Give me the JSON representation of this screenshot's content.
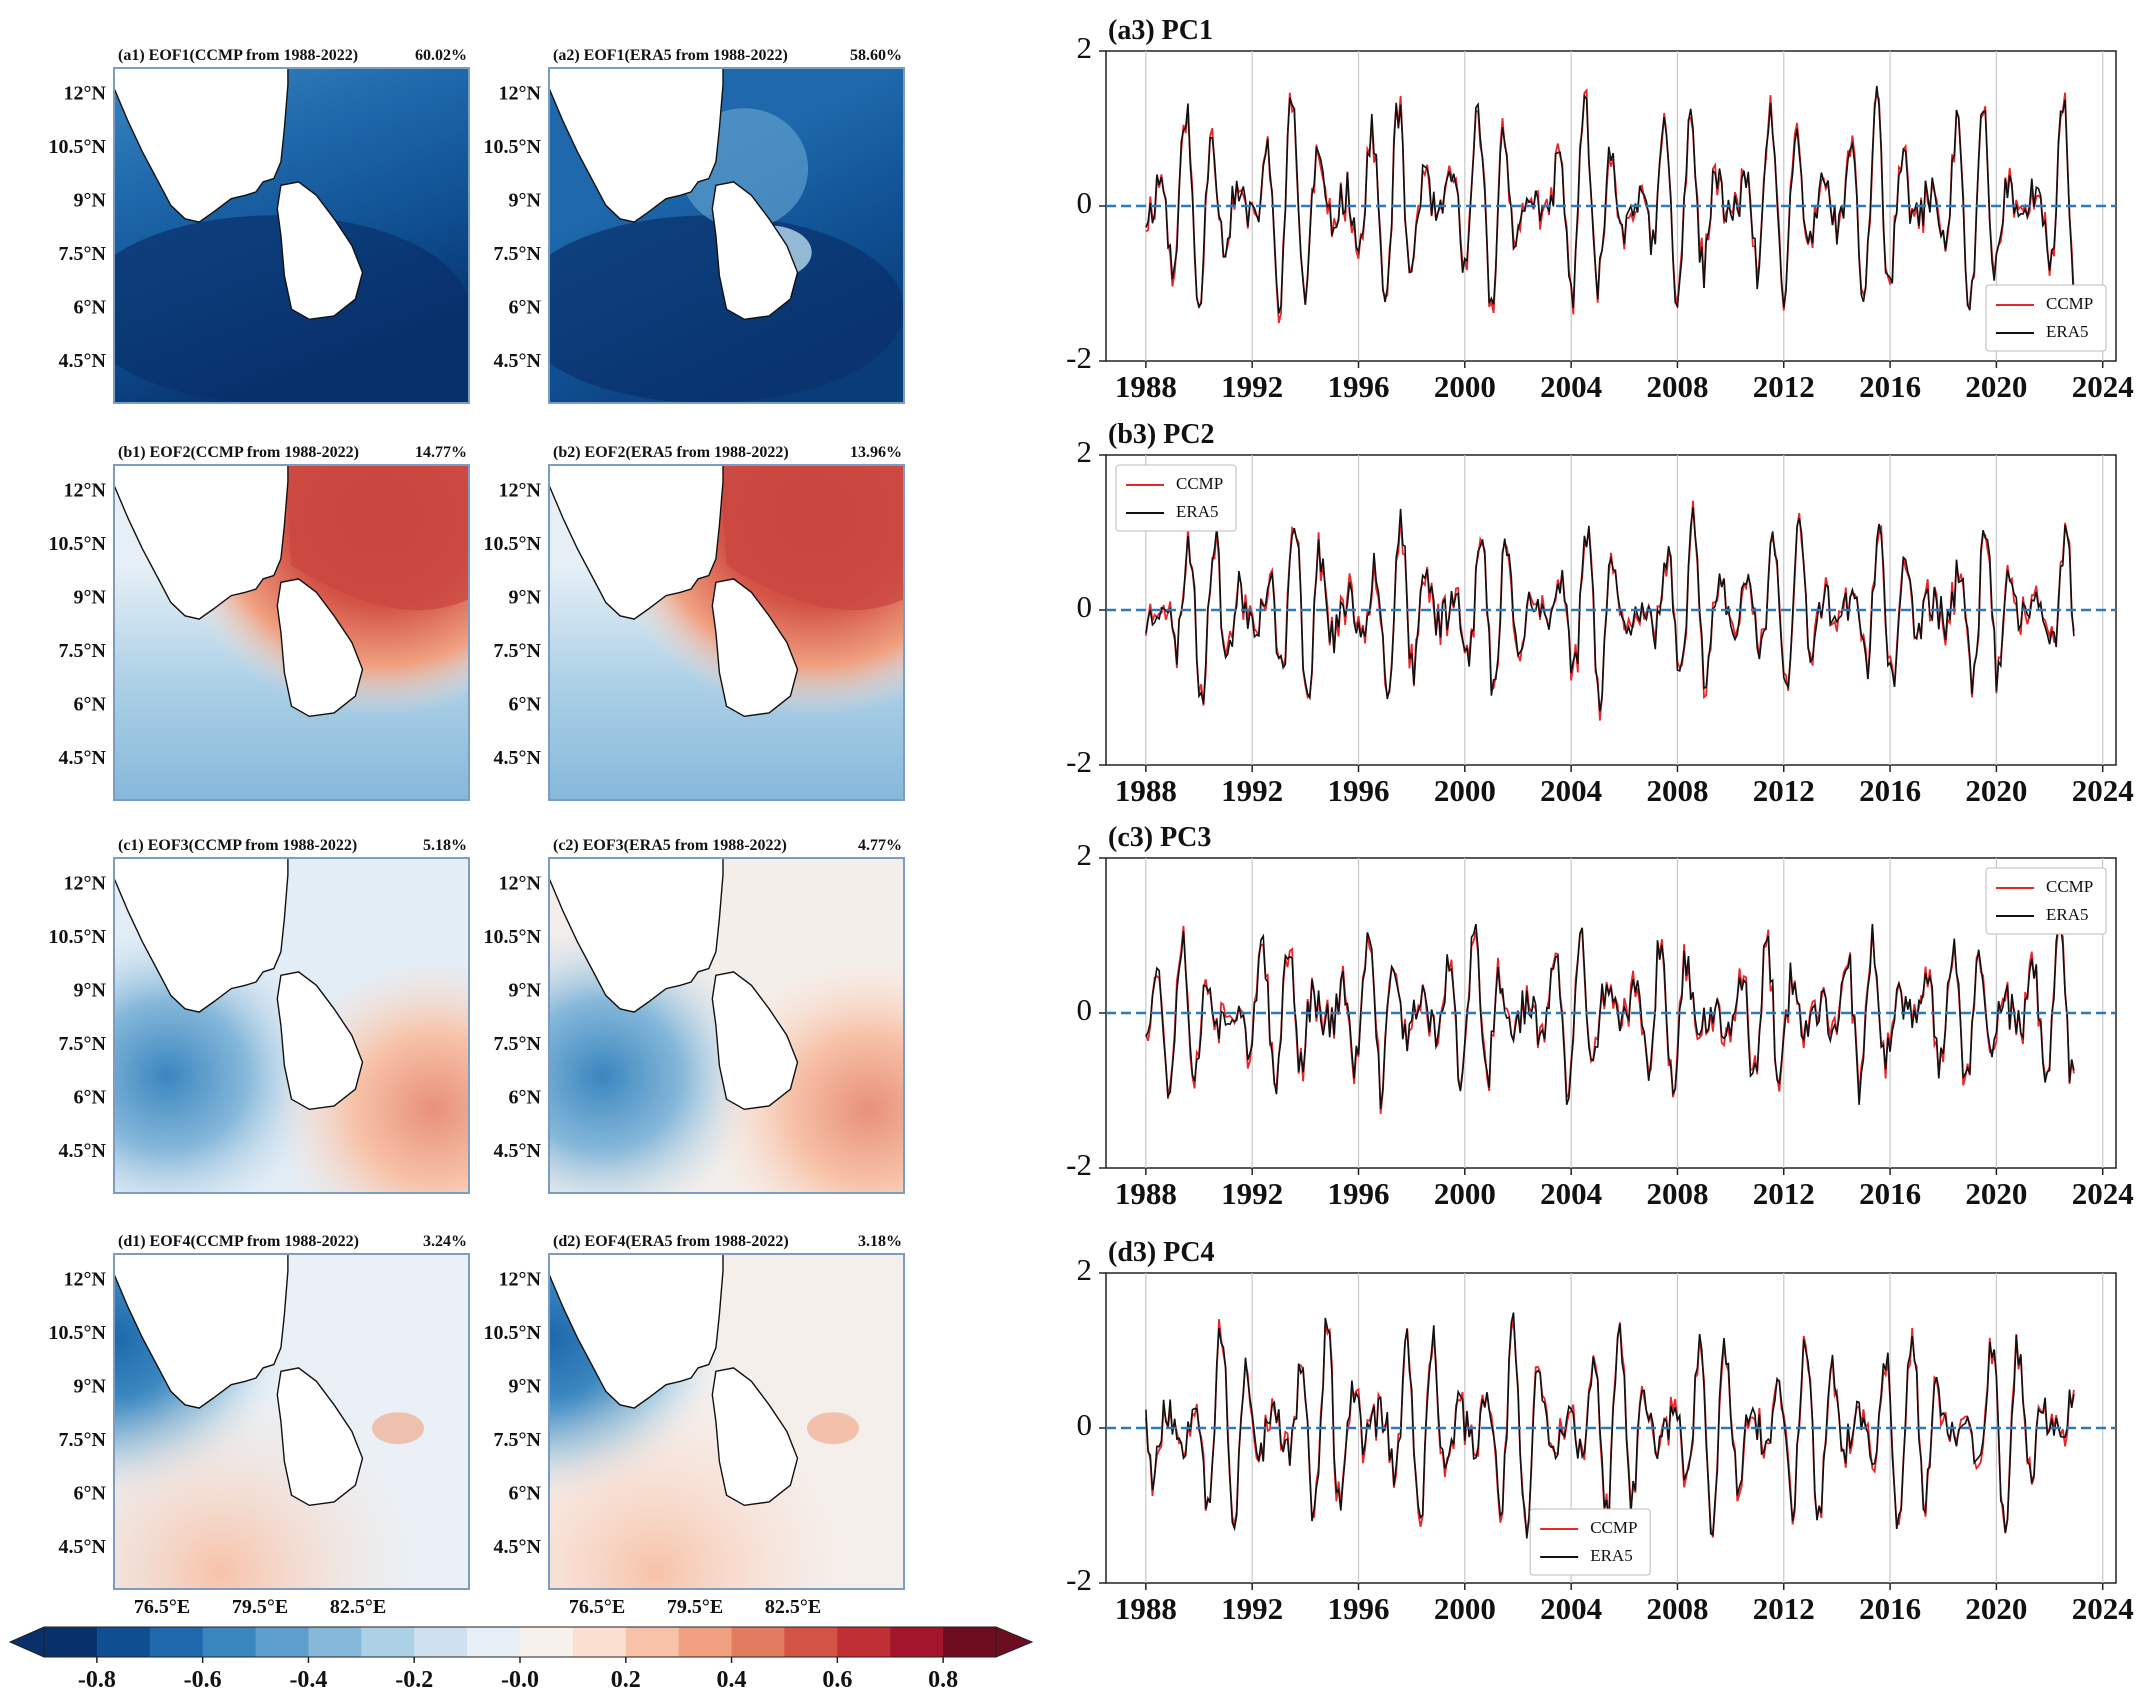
{
  "colors": {
    "ccmp": "#e8262a",
    "era5": "#111111",
    "zero_line": "#2b7bba",
    "colorbar": [
      "#08306b",
      "#0f4f91",
      "#1e68ab",
      "#3a86bf",
      "#5d9ecd",
      "#86b8da",
      "#acd0e6",
      "#cfe1ef",
      "#e7eff6",
      "#f7f1ee",
      "#fbe0d2",
      "#f7c2a8",
      "#f0a080",
      "#e37b5f",
      "#d35346",
      "#bf2f34",
      "#a3152a",
      "#6e0d1f"
    ]
  },
  "maps": {
    "lat_labels": [
      "12°N",
      "10.5°N",
      "9°N",
      "7.5°N",
      "6°N",
      "4.5°N"
    ],
    "lon_labels": [
      "76.5°E",
      "79.5°E",
      "82.5°E"
    ],
    "panels": [
      {
        "id": "a1",
        "title": "(a1) EOF1(CCMP from 1988-2022)",
        "pct": "60.02%"
      },
      {
        "id": "a2",
        "title": "(a2) EOF1(ERA5 from 1988-2022)",
        "pct": "58.60%"
      },
      {
        "id": "b1",
        "title": "(b1) EOF2(CCMP from 1988-2022)",
        "pct": "14.77%"
      },
      {
        "id": "b2",
        "title": "(b2) EOF2(ERA5 from 1988-2022)",
        "pct": "13.96%"
      },
      {
        "id": "c1",
        "title": "(c1) EOF3(CCMP from 1988-2022)",
        "pct": "5.18%"
      },
      {
        "id": "c2",
        "title": "(c2) EOF3(ERA5 from 1988-2022)",
        "pct": "4.77%"
      },
      {
        "id": "d1",
        "title": "(d1) EOF4(CCMP from 1988-2022)",
        "pct": "3.24%"
      },
      {
        "id": "d2",
        "title": "(d2) EOF4(ERA5 from 1988-2022)",
        "pct": "3.18%"
      }
    ]
  },
  "colorbar": {
    "tick_labels": [
      "-0.8",
      "-0.6",
      "-0.4",
      "-0.2",
      "-0.0",
      "0.2",
      "0.4",
      "0.6",
      "0.8"
    ],
    "range": [
      -0.9,
      0.9
    ]
  },
  "chart_data": [
    {
      "id": "a3",
      "type": "line",
      "title": "(a3) PC1",
      "x_ticks": [
        "1988",
        "1992",
        "1996",
        "2000",
        "2004",
        "2008",
        "2012",
        "2016",
        "2020",
        "2024"
      ],
      "xlim": [
        1986.5,
        2024.5
      ],
      "ylim": [
        -2,
        2
      ],
      "y_ticks": [
        "2",
        "0",
        "-2"
      ],
      "legend": [
        "CCMP",
        "ERA5"
      ],
      "legend_position": "lower-right",
      "amplitude": 1.6,
      "seed": 11
    },
    {
      "id": "b3",
      "type": "line",
      "title": "(b3) PC2",
      "x_ticks": [
        "1988",
        "1992",
        "1996",
        "2000",
        "2004",
        "2008",
        "2012",
        "2016",
        "2020",
        "2024"
      ],
      "xlim": [
        1986.5,
        2024.5
      ],
      "ylim": [
        -2,
        2
      ],
      "y_ticks": [
        "2",
        "0",
        "-2"
      ],
      "legend": [
        "CCMP",
        "ERA5"
      ],
      "legend_position": "upper-left",
      "amplitude": 1.3,
      "seed": 23
    },
    {
      "id": "c3",
      "type": "line",
      "title": "(c3) PC3",
      "x_ticks": [
        "1988",
        "1992",
        "1996",
        "2000",
        "2004",
        "2008",
        "2012",
        "2016",
        "2020",
        "2024"
      ],
      "xlim": [
        1986.5,
        2024.5
      ],
      "ylim": [
        -2,
        2
      ],
      "y_ticks": [
        "2",
        "0",
        "-2"
      ],
      "legend": [
        "CCMP",
        "ERA5"
      ],
      "legend_position": "upper-right",
      "amplitude": 1.2,
      "seed": 37
    },
    {
      "id": "d3",
      "type": "line",
      "title": "(d3) PC4",
      "x_ticks": [
        "1988",
        "1992",
        "1996",
        "2000",
        "2004",
        "2008",
        "2012",
        "2016",
        "2020",
        "2024"
      ],
      "xlim": [
        1986.5,
        2024.5
      ],
      "ylim": [
        -2,
        2
      ],
      "y_ticks": [
        "2",
        "0",
        "-2"
      ],
      "legend": [
        "CCMP",
        "ERA5"
      ],
      "legend_position": "lower-center",
      "amplitude": 1.5,
      "seed": 53
    }
  ]
}
